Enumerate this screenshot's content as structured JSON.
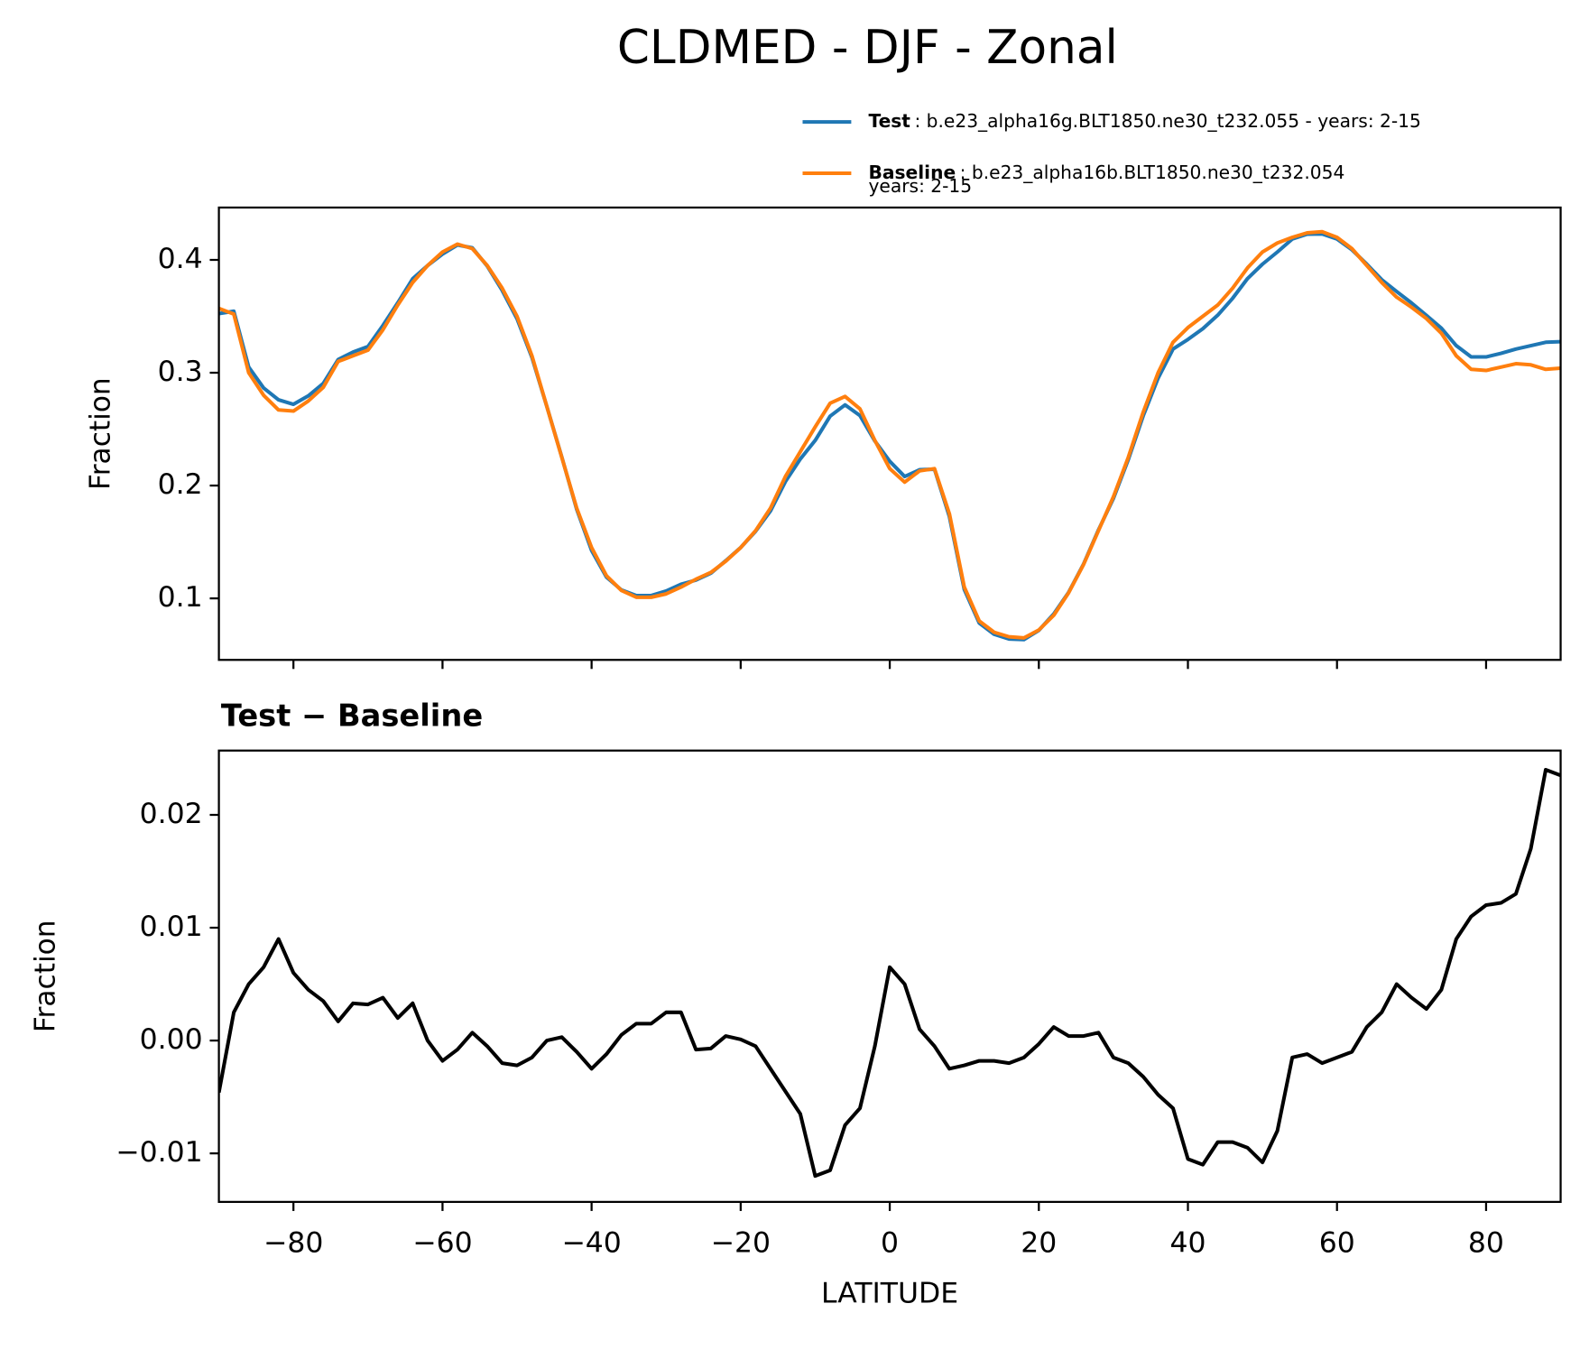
{
  "chart_data": [
    {
      "type": "line",
      "title": "CLDMED - DJF - Zonal",
      "ylabel": "Fraction",
      "x": [
        -90,
        -88,
        -86,
        -84,
        -82,
        -80,
        -78,
        -76,
        -74,
        -72,
        -70,
        -68,
        -66,
        -64,
        -62,
        -60,
        -58,
        -56,
        -54,
        -52,
        -50,
        -48,
        -46,
        -44,
        -42,
        -40,
        -38,
        -36,
        -34,
        -32,
        -30,
        -28,
        -26,
        -24,
        -22,
        -20,
        -18,
        -16,
        -14,
        -12,
        -10,
        -8,
        -6,
        -4,
        -2,
        0,
        2,
        4,
        6,
        8,
        10,
        12,
        14,
        16,
        18,
        20,
        22,
        24,
        26,
        28,
        30,
        32,
        34,
        36,
        38,
        40,
        42,
        44,
        46,
        48,
        50,
        52,
        54,
        56,
        58,
        60,
        62,
        64,
        66,
        68,
        70,
        72,
        74,
        76,
        78,
        80,
        82,
        84,
        86,
        88,
        90
      ],
      "series": [
        {
          "name": "Test",
          "description": [
            ": b.e23_alpha16g.BLT1850.ne30_t232.055 - years: 2-15"
          ],
          "color": "#1f77b4",
          "values": [
            0.3524,
            0.3545,
            0.305,
            0.2865,
            0.276,
            0.272,
            0.2795,
            0.2905,
            0.3117,
            0.3183,
            0.3232,
            0.3418,
            0.362,
            0.3833,
            0.395,
            0.4052,
            0.4132,
            0.4107,
            0.3945,
            0.373,
            0.3478,
            0.3135,
            0.27,
            0.2253,
            0.179,
            0.1425,
            0.1188,
            0.1075,
            0.1025,
            0.1025,
            0.1065,
            0.1125,
            0.1162,
            0.1223,
            0.1334,
            0.1451,
            0.1595,
            0.1775,
            0.2035,
            0.2235,
            0.24,
            0.2615,
            0.2715,
            0.262,
            0.2395,
            0.2215,
            0.208,
            0.214,
            0.2145,
            0.1725,
            0.1078,
            0.0782,
            0.0682,
            0.064,
            0.0635,
            0.0717,
            0.0862,
            0.1054,
            0.1304,
            0.1607,
            0.1885,
            0.223,
            0.2618,
            0.2952,
            0.321,
            0.3295,
            0.339,
            0.351,
            0.366,
            0.3835,
            0.3962,
            0.407,
            0.4185,
            0.4228,
            0.423,
            0.4185,
            0.409,
            0.3962,
            0.3825,
            0.372,
            0.3618,
            0.3508,
            0.3395,
            0.324,
            0.314,
            0.314,
            0.3172,
            0.321,
            0.324,
            0.327,
            0.3275
          ]
        },
        {
          "name": "Baseline",
          "description": [
            ": b.e23_alpha16b.BLT1850.ne30_t232.054",
            "years: 2-15"
          ],
          "color": "#ff7f0e",
          "values": [
            0.357,
            0.352,
            0.3,
            0.28,
            0.267,
            0.266,
            0.275,
            0.287,
            0.31,
            0.315,
            0.32,
            0.338,
            0.36,
            0.38,
            0.395,
            0.407,
            0.414,
            0.41,
            0.395,
            0.375,
            0.35,
            0.315,
            0.27,
            0.225,
            0.18,
            0.145,
            0.12,
            0.107,
            0.101,
            0.101,
            0.104,
            0.11,
            0.117,
            0.123,
            0.133,
            0.145,
            0.16,
            0.18,
            0.208,
            0.23,
            0.252,
            0.273,
            0.279,
            0.268,
            0.24,
            0.215,
            0.203,
            0.213,
            0.215,
            0.175,
            0.11,
            0.08,
            0.07,
            0.066,
            0.065,
            0.072,
            0.085,
            0.105,
            0.13,
            0.16,
            0.19,
            0.225,
            0.265,
            0.3,
            0.327,
            0.34,
            0.35,
            0.36,
            0.375,
            0.393,
            0.407,
            0.415,
            0.42,
            0.424,
            0.425,
            0.42,
            0.41,
            0.395,
            0.38,
            0.367,
            0.358,
            0.348,
            0.335,
            0.315,
            0.303,
            0.302,
            0.305,
            0.308,
            0.307,
            0.303,
            0.304
          ]
        }
      ],
      "xlim": [
        -90,
        90
      ],
      "ylim": [
        0.0455,
        0.4464
      ],
      "yticks": [
        0.1,
        0.2,
        0.3,
        0.4
      ]
    },
    {
      "type": "line",
      "title": "Test − Baseline",
      "ylabel": "Fraction",
      "xlabel": "LATITUDE",
      "x": [
        -90,
        -88,
        -86,
        -84,
        -82,
        -80,
        -78,
        -76,
        -74,
        -72,
        -70,
        -68,
        -66,
        -64,
        -62,
        -60,
        -58,
        -56,
        -54,
        -52,
        -50,
        -48,
        -46,
        -44,
        -42,
        -40,
        -38,
        -36,
        -34,
        -32,
        -30,
        -28,
        -26,
        -24,
        -22,
        -20,
        -18,
        -16,
        -14,
        -12,
        -10,
        -8,
        -6,
        -4,
        -2,
        0,
        2,
        4,
        6,
        8,
        10,
        12,
        14,
        16,
        18,
        20,
        22,
        24,
        26,
        28,
        30,
        32,
        34,
        36,
        38,
        40,
        42,
        44,
        46,
        48,
        50,
        52,
        54,
        56,
        58,
        60,
        62,
        64,
        66,
        68,
        70,
        72,
        74,
        76,
        78,
        80,
        82,
        84,
        86,
        88,
        90
      ],
      "series": [
        {
          "color": "#000000",
          "values": [
            -0.0046,
            0.0025,
            0.005,
            0.0065,
            0.009,
            0.006,
            0.0045,
            0.0035,
            0.0017,
            0.0033,
            0.0032,
            0.0038,
            0.002,
            0.0033,
            0.0,
            -0.0018,
            -0.0008,
            0.0007,
            -0.0005,
            -0.002,
            -0.0022,
            -0.0015,
            0.0,
            0.0003,
            -0.001,
            -0.0025,
            -0.0012,
            0.0005,
            0.0015,
            0.0015,
            0.0025,
            0.0025,
            -0.0008,
            -0.0007,
            0.0004,
            0.0001,
            -0.0005,
            -0.0025,
            -0.0045,
            -0.0065,
            -0.012,
            -0.0115,
            -0.0075,
            -0.006,
            -0.0005,
            0.0065,
            0.005,
            0.001,
            -0.0005,
            -0.0025,
            -0.0022,
            -0.0018,
            -0.0018,
            -0.002,
            -0.0015,
            -0.0003,
            0.0012,
            0.0004,
            0.0004,
            0.0007,
            -0.0015,
            -0.002,
            -0.0032,
            -0.0048,
            -0.006,
            -0.0105,
            -0.011,
            -0.009,
            -0.009,
            -0.0095,
            -0.0108,
            -0.008,
            -0.0015,
            -0.0012,
            -0.002,
            -0.0015,
            -0.001,
            0.0012,
            0.0025,
            0.005,
            0.0038,
            0.0028,
            0.0045,
            0.009,
            0.011,
            0.012,
            0.0122,
            0.013,
            0.017,
            0.024,
            0.0235
          ]
        }
      ],
      "xlim": [
        -90,
        90
      ],
      "ylim": [
        -0.0143,
        0.0257
      ],
      "xticks": [
        {
          "value": -80,
          "label": "−80"
        },
        {
          "value": -60,
          "label": "−60"
        },
        {
          "value": -40,
          "label": "−40"
        },
        {
          "value": -20,
          "label": "−20"
        },
        0,
        20,
        40,
        60,
        80
      ],
      "yticks": [
        {
          "value": -0.01,
          "label": "−0.01"
        },
        {
          "value": 0,
          "label": "0.00"
        },
        0.01,
        0.02
      ]
    }
  ]
}
